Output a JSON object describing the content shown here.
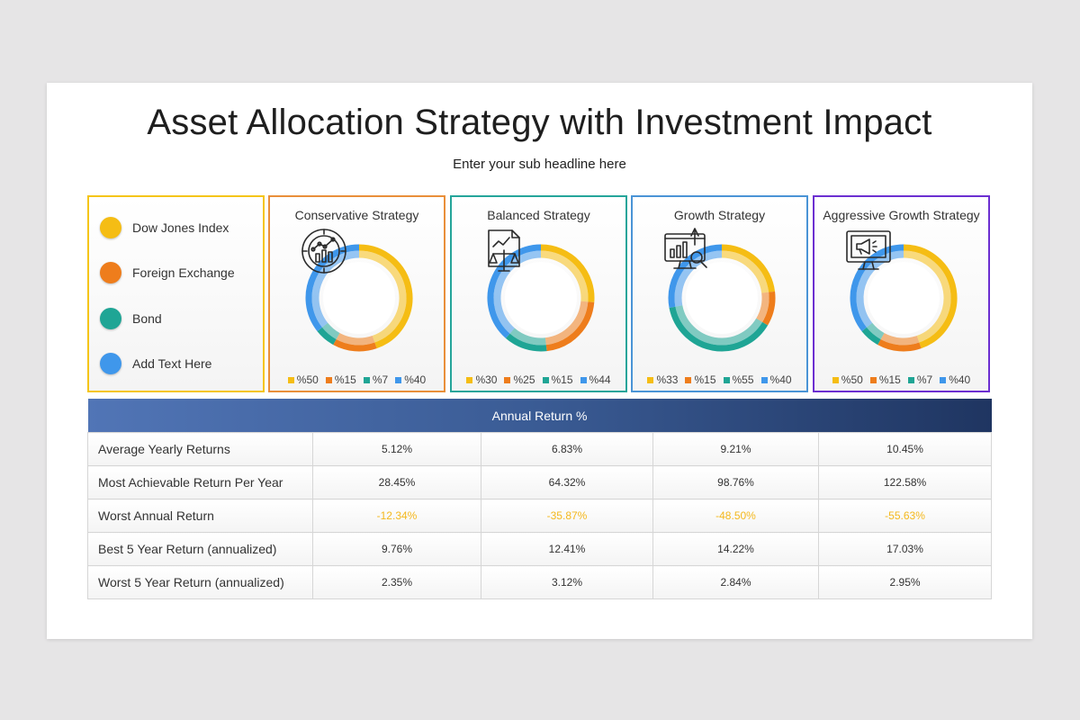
{
  "header": {
    "title": "Asset Allocation Strategy with Investment Impact",
    "subtitle": "Enter your sub headline here"
  },
  "legend": {
    "border_color": "#f5c518",
    "items": [
      {
        "label": "Dow Jones Index",
        "color": "#f5bd14"
      },
      {
        "label": "Foreign Exchange",
        "color": "#ee7d1c"
      },
      {
        "label": "Bond",
        "color": "#1fa595"
      },
      {
        "label": "Add Text Here",
        "color": "#3f97eb"
      }
    ]
  },
  "chart_data": [
    {
      "type": "pie",
      "title": "Conservative Strategy",
      "categories": [
        "Dow Jones Index",
        "Foreign Exchange",
        "Bond",
        "Add Text Here"
      ],
      "values": [
        50,
        15,
        7,
        40
      ],
      "labels": [
        "%50",
        "%15",
        "%7",
        "%40"
      ],
      "colors": [
        "#f5bd14",
        "#ee7d1c",
        "#1fa595",
        "#3f97eb"
      ],
      "border_color": "#e98f3a",
      "icon": "chart-magnifier-icon"
    },
    {
      "type": "pie",
      "title": "Balanced Strategy",
      "categories": [
        "Dow Jones Index",
        "Foreign Exchange",
        "Bond",
        "Add Text Here"
      ],
      "values": [
        30,
        25,
        15,
        44
      ],
      "labels": [
        "%30",
        "%25",
        "%15",
        "%44"
      ],
      "colors": [
        "#f5bd14",
        "#ee7d1c",
        "#1fa595",
        "#3f97eb"
      ],
      "border_color": "#25a59a",
      "icon": "document-balance-scale-icon"
    },
    {
      "type": "pie",
      "title": "Growth Strategy",
      "categories": [
        "Dow Jones Index",
        "Foreign Exchange",
        "Bond",
        "Add Text Here"
      ],
      "values": [
        33,
        15,
        55,
        40
      ],
      "labels": [
        "%33",
        "%15",
        "%55",
        "%40"
      ],
      "colors": [
        "#f5bd14",
        "#ee7d1c",
        "#1fa595",
        "#3f97eb"
      ],
      "border_color": "#4a94d6",
      "icon": "monitor-analytics-icon"
    },
    {
      "type": "pie",
      "title": "Aggressive Growth Strategy",
      "categories": [
        "Dow Jones Index",
        "Foreign Exchange",
        "Bond",
        "Add Text Here"
      ],
      "values": [
        50,
        15,
        7,
        40
      ],
      "labels": [
        "%50",
        "%15",
        "%7",
        "%40"
      ],
      "colors": [
        "#f5bd14",
        "#ee7d1c",
        "#1fa595",
        "#3f97eb"
      ],
      "border_color": "#6c2fd1",
      "icon": "monitor-megaphone-icon"
    },
    {
      "type": "table",
      "title": "Annual Return %",
      "rows": [
        {
          "label": "Average Yearly Returns",
          "values": [
            "5.12%",
            "6.83%",
            "9.21%",
            "10.45%"
          ]
        },
        {
          "label": "Most Achievable Return Per Year",
          "values": [
            "28.45%",
            "64.32%",
            "98.76%",
            "122.58%"
          ]
        },
        {
          "label": "Worst Annual Return",
          "values": [
            "-12.34%",
            "-35.87%",
            "-48.50%",
            "-55.63%"
          ]
        },
        {
          "label": "Best 5 Year Return (annualized)",
          "values": [
            "9.76%",
            "12.41%",
            "14.22%",
            "17.03%"
          ]
        },
        {
          "label": "Worst 5 Year Return (annualized)",
          "values": [
            "2.35%",
            "3.12%",
            "2.84%",
            "2.95%"
          ]
        }
      ]
    }
  ]
}
